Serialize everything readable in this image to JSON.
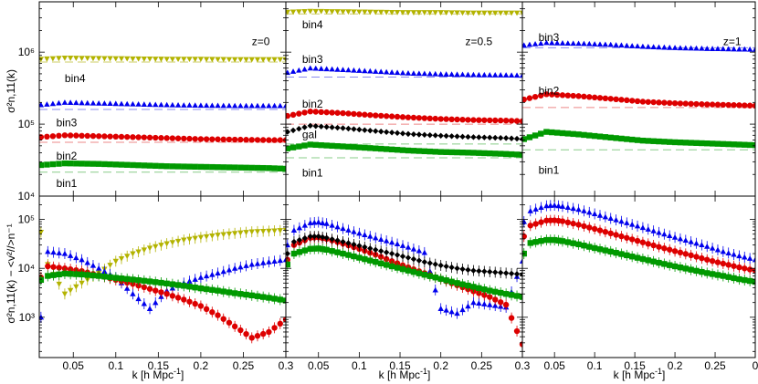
{
  "figure": {
    "xlabel": "k [h Mpc",
    "xlabel_sup": "-1",
    "xlabel_close": "]",
    "ylabel_top": "σ²n,11(k)",
    "ylabel_bottom": "σ²n,11(k) − <v²//>n⁻¹"
  },
  "colors": {
    "gal": "#000000",
    "bin1": "#009900",
    "bin2": "#dd0000",
    "bin3": "#0000ee",
    "bin4": "#b3b300",
    "dash_green": "#88cc88",
    "dash_red": "#ee8888",
    "dash_blue": "#8888ee",
    "dash_olive": "#cccc66"
  },
  "chart_data": [
    {
      "type": "scatter",
      "panel": "top-left",
      "label": "z=0",
      "yscale": "log",
      "ylim": [
        10000,
        5000000
      ],
      "xlim": [
        0.01,
        0.3
      ],
      "series": [
        {
          "name": "bin4",
          "marker": "tri_down",
          "color": "bin4",
          "x": [
            0.012,
            0.04,
            0.08,
            0.12,
            0.16,
            0.2,
            0.24,
            0.28,
            0.3
          ],
          "y": [
            800000,
            830000,
            820000,
            810000,
            800000,
            800000,
            790000,
            790000,
            790000
          ],
          "nominal": 730000
        },
        {
          "name": "bin3",
          "marker": "tri_up",
          "color": "bin3",
          "x": [
            0.012,
            0.04,
            0.08,
            0.12,
            0.16,
            0.2,
            0.24,
            0.28,
            0.3
          ],
          "y": [
            185000,
            200000,
            195000,
            190000,
            185000,
            182000,
            180000,
            180000,
            180000
          ],
          "nominal": 160000
        },
        {
          "name": "bin2",
          "marker": "circle",
          "color": "bin2",
          "x": [
            0.012,
            0.04,
            0.08,
            0.12,
            0.16,
            0.2,
            0.24,
            0.28,
            0.3
          ],
          "y": [
            66000,
            70000,
            68000,
            66000,
            64000,
            62000,
            61000,
            60000,
            60000
          ],
          "nominal": 56000
        },
        {
          "name": "bin1",
          "marker": "square",
          "color": "bin1",
          "x": [
            0.012,
            0.04,
            0.08,
            0.12,
            0.16,
            0.2,
            0.24,
            0.28,
            0.3
          ],
          "y": [
            27000,
            28500,
            28000,
            27000,
            26000,
            25500,
            25000,
            24500,
            24000
          ],
          "nominal": 21500
        }
      ]
    },
    {
      "type": "scatter",
      "panel": "top-middle",
      "label": "z=0.5",
      "yscale": "log",
      "ylim": [
        10000,
        5000000
      ],
      "xlim": [
        0.01,
        0.3
      ],
      "series": [
        {
          "name": "bin4",
          "marker": "tri_down",
          "color": "bin4",
          "x": [
            0.012,
            0.04,
            0.08,
            0.12,
            0.16,
            0.2,
            0.24,
            0.28,
            0.3
          ],
          "y": [
            3600000,
            3700000,
            3650000,
            3600000,
            3550000,
            3550000,
            3500000,
            3500000,
            3500000
          ],
          "nominal": 3400000
        },
        {
          "name": "bin3",
          "marker": "tri_up",
          "color": "bin3",
          "x": [
            0.012,
            0.04,
            0.08,
            0.12,
            0.16,
            0.2,
            0.24,
            0.28,
            0.3
          ],
          "y": [
            520000,
            600000,
            570000,
            540000,
            510000,
            495000,
            485000,
            480000,
            475000
          ],
          "nominal": 450000
        },
        {
          "name": "bin2",
          "marker": "circle",
          "color": "bin2",
          "x": [
            0.012,
            0.04,
            0.08,
            0.12,
            0.16,
            0.2,
            0.24,
            0.28,
            0.3
          ],
          "y": [
            130000,
            150000,
            142000,
            132000,
            124000,
            118000,
            114000,
            112000,
            110000
          ],
          "nominal": 100000
        },
        {
          "name": "gal",
          "marker": "diamond",
          "color": "gal",
          "x": [
            0.012,
            0.04,
            0.08,
            0.12,
            0.16,
            0.2,
            0.24,
            0.28,
            0.3
          ],
          "y": [
            78000,
            95000,
            88000,
            80000,
            73000,
            69000,
            66000,
            64000,
            62000
          ],
          "nominal": 53000
        },
        {
          "name": "bin1",
          "marker": "square",
          "color": "bin1",
          "x": [
            0.012,
            0.04,
            0.08,
            0.12,
            0.16,
            0.2,
            0.24,
            0.28,
            0.3
          ],
          "y": [
            46000,
            52000,
            49000,
            46000,
            43000,
            41000,
            40000,
            38500,
            37500
          ],
          "nominal": 34000
        }
      ]
    },
    {
      "type": "scatter",
      "panel": "top-right",
      "label": "z=1",
      "yscale": "log",
      "ylim": [
        10000,
        5000000
      ],
      "xlim": [
        0.01,
        0.3
      ],
      "series": [
        {
          "name": "bin3",
          "marker": "tri_up",
          "color": "bin3",
          "x": [
            0.012,
            0.04,
            0.08,
            0.12,
            0.16,
            0.2,
            0.24,
            0.28,
            0.3
          ],
          "y": [
            1250000,
            1350000,
            1320000,
            1270000,
            1200000,
            1150000,
            1120000,
            1100000,
            1090000
          ],
          "nominal": 1150000
        },
        {
          "name": "bin2",
          "marker": "circle",
          "color": "bin2",
          "x": [
            0.012,
            0.04,
            0.08,
            0.12,
            0.16,
            0.2,
            0.24,
            0.28,
            0.3
          ],
          "y": [
            220000,
            260000,
            245000,
            225000,
            205000,
            195000,
            188000,
            183000,
            180000
          ],
          "nominal": 170000
        },
        {
          "name": "bin1",
          "marker": "square",
          "color": "bin1",
          "x": [
            0.012,
            0.04,
            0.08,
            0.12,
            0.16,
            0.2,
            0.24,
            0.28,
            0.3
          ],
          "y": [
            62000,
            78000,
            72000,
            65000,
            59000,
            56000,
            54000,
            52000,
            51000
          ],
          "nominal": 44000
        }
      ]
    },
    {
      "type": "scatter",
      "panel": "bottom-left",
      "yscale": "log",
      "ylim": [
        150,
        300000
      ],
      "xlim": [
        0.01,
        0.3
      ],
      "series": [
        {
          "name": "bin4",
          "marker": "tri_down",
          "color": "bin4",
          "x": [
            0.012,
            0.02,
            0.04,
            0.06,
            0.08,
            0.1,
            0.12,
            0.14,
            0.16,
            0.18,
            0.2,
            0.22,
            0.24,
            0.26,
            0.28,
            0.3
          ],
          "y": [
            55000,
            12000,
            3000,
            5000,
            8000,
            14000,
            20000,
            26000,
            32000,
            38000,
            43000,
            48000,
            52000,
            56000,
            58000,
            60000
          ]
        },
        {
          "name": "bin3",
          "marker": "tri_up",
          "color": "bin3",
          "x": [
            0.012,
            0.02,
            0.04,
            0.06,
            0.08,
            0.1,
            0.12,
            0.14,
            0.16,
            0.18,
            0.2,
            0.22,
            0.24,
            0.26,
            0.28,
            0.3
          ],
          "y": [
            1000,
            22000,
            20000,
            15000,
            10000,
            6500,
            3000,
            1500,
            3500,
            5000,
            6500,
            8000,
            10000,
            12000,
            13500,
            15000
          ]
        },
        {
          "name": "bin2",
          "marker": "circle",
          "color": "bin2",
          "x": [
            0.012,
            0.02,
            0.04,
            0.06,
            0.08,
            0.1,
            0.12,
            0.14,
            0.16,
            0.18,
            0.2,
            0.22,
            0.24,
            0.26,
            0.28,
            0.3
          ],
          "y": [
            6500,
            11000,
            10000,
            8800,
            7200,
            5800,
            4800,
            3800,
            3000,
            2300,
            1700,
            1100,
            650,
            380,
            500,
            900
          ]
        },
        {
          "name": "bin1",
          "marker": "square",
          "color": "bin1",
          "x": [
            0.012,
            0.02,
            0.04,
            0.06,
            0.08,
            0.1,
            0.12,
            0.14,
            0.16,
            0.18,
            0.2,
            0.22,
            0.24,
            0.26,
            0.28,
            0.3
          ],
          "y": [
            5800,
            7000,
            7800,
            7500,
            7000,
            6400,
            5900,
            5400,
            4900,
            4400,
            3900,
            3500,
            3100,
            2800,
            2500,
            2200
          ]
        }
      ]
    },
    {
      "type": "scatter",
      "panel": "bottom-middle",
      "yscale": "log",
      "ylim": [
        150,
        300000
      ],
      "xlim": [
        0.01,
        0.3
      ],
      "series": [
        {
          "name": "bin3",
          "marker": "tri_up",
          "color": "bin3",
          "x": [
            0.012,
            0.02,
            0.04,
            0.05,
            0.06,
            0.08,
            0.1,
            0.12,
            0.14,
            0.16,
            0.18,
            0.2,
            0.22,
            0.24,
            0.26,
            0.28,
            0.3
          ],
          "y": [
            30000,
            60000,
            85000,
            88000,
            82000,
            65000,
            52000,
            42000,
            34000,
            27000,
            21000,
            1500,
            1200,
            2000,
            1800,
            1600,
            14000
          ]
        },
        {
          "name": "bin2",
          "marker": "circle",
          "color": "bin2",
          "x": [
            0.012,
            0.02,
            0.04,
            0.05,
            0.06,
            0.08,
            0.1,
            0.12,
            0.14,
            0.16,
            0.18,
            0.2,
            0.22,
            0.24,
            0.26,
            0.28,
            0.3
          ],
          "y": [
            15000,
            30000,
            42000,
            43000,
            40000,
            32000,
            25000,
            19000,
            14000,
            10500,
            8000,
            6000,
            4500,
            3400,
            2600,
            1800,
            280
          ]
        },
        {
          "name": "gal",
          "marker": "diamond",
          "color": "gal",
          "x": [
            0.012,
            0.02,
            0.04,
            0.05,
            0.06,
            0.08,
            0.1,
            0.12,
            0.14,
            0.16,
            0.18,
            0.2,
            0.22,
            0.24,
            0.26,
            0.28,
            0.3
          ],
          "y": [
            20000,
            35000,
            45000,
            45000,
            42000,
            35000,
            29000,
            24000,
            20000,
            16500,
            13500,
            11500,
            10000,
            9000,
            8500,
            8000,
            7500
          ]
        },
        {
          "name": "bin1",
          "marker": "square",
          "color": "bin1",
          "x": [
            0.012,
            0.02,
            0.04,
            0.05,
            0.06,
            0.08,
            0.1,
            0.12,
            0.14,
            0.16,
            0.18,
            0.2,
            0.22,
            0.24,
            0.26,
            0.28,
            0.3
          ],
          "y": [
            12000,
            20000,
            25000,
            25500,
            24000,
            20000,
            16500,
            13500,
            11000,
            9000,
            7400,
            6100,
            5000,
            4200,
            3500,
            3000,
            2600
          ]
        }
      ]
    },
    {
      "type": "scatter",
      "panel": "bottom-right",
      "yscale": "log",
      "ylim": [
        150,
        300000
      ],
      "xlim": [
        0.01,
        0.3
      ],
      "series": [
        {
          "name": "bin3",
          "marker": "tri_up",
          "color": "bin3",
          "x": [
            0.012,
            0.02,
            0.04,
            0.05,
            0.06,
            0.08,
            0.1,
            0.12,
            0.14,
            0.16,
            0.18,
            0.2,
            0.22,
            0.24,
            0.26,
            0.28,
            0.3
          ],
          "y": [
            90000,
            150000,
            190000,
            195000,
            185000,
            160000,
            130000,
            105000,
            85000,
            68000,
            54000,
            43000,
            35000,
            28000,
            22000,
            18000,
            15000
          ]
        },
        {
          "name": "bin2",
          "marker": "circle",
          "color": "bin2",
          "x": [
            0.012,
            0.02,
            0.04,
            0.05,
            0.06,
            0.08,
            0.1,
            0.12,
            0.14,
            0.16,
            0.18,
            0.2,
            0.22,
            0.24,
            0.26,
            0.28,
            0.3
          ],
          "y": [
            45000,
            75000,
            95000,
            96000,
            92000,
            78000,
            64000,
            52000,
            42000,
            34000,
            27500,
            22500,
            18500,
            15000,
            12500,
            10500,
            9000
          ]
        },
        {
          "name": "bin1",
          "marker": "square",
          "color": "bin1",
          "x": [
            0.012,
            0.02,
            0.04,
            0.05,
            0.06,
            0.08,
            0.1,
            0.12,
            0.14,
            0.16,
            0.18,
            0.2,
            0.22,
            0.24,
            0.26,
            0.28,
            0.3
          ],
          "y": [
            20000,
            33000,
            38000,
            38000,
            36000,
            31000,
            26000,
            22000,
            18500,
            15500,
            13000,
            11000,
            9400,
            8000,
            7000,
            6000,
            5300
          ]
        }
      ]
    }
  ],
  "labels": {
    "top-left": [
      {
        "text": "z=0",
        "x": 0.26,
        "y": 1400000
      },
      {
        "text": "bin4",
        "x": 0.04,
        "y": 430000
      },
      {
        "text": "bin3",
        "x": 0.03,
        "y": 105000
      },
      {
        "text": "bin2",
        "x": 0.03,
        "y": 36000
      },
      {
        "text": "bin1",
        "x": 0.03,
        "y": 15000
      }
    ],
    "top-middle": [
      {
        "text": "z=0.5",
        "x": 0.23,
        "y": 1400000
      },
      {
        "text": "bin4",
        "x": 0.03,
        "y": 2400000
      },
      {
        "text": "bin3",
        "x": 0.03,
        "y": 800000
      },
      {
        "text": "bin2",
        "x": 0.03,
        "y": 190000
      },
      {
        "text": "gal",
        "x": 0.03,
        "y": 72000
      },
      {
        "text": "bin1",
        "x": 0.03,
        "y": 21000
      }
    ],
    "top-right": [
      {
        "text": "bin3",
        "x": 0.03,
        "y": 1600000
      },
      {
        "text": "z=1",
        "x": 0.26,
        "y": 1400000
      },
      {
        "text": "bin2",
        "x": 0.03,
        "y": 290000
      },
      {
        "text": "bin1",
        "x": 0.03,
        "y": 23000
      }
    ]
  },
  "ticks": {
    "x": [
      "0.05",
      "0.1",
      "0.15",
      "0.2",
      "0.25",
      "0.3",
      "0.05",
      "0.1",
      "0.15",
      "0.2",
      "0.25",
      "0.3",
      "0.05",
      "0.1",
      "0.15",
      "0.2",
      "0.25",
      "0"
    ],
    "y_top": [
      "10⁴",
      "10⁵",
      "10⁶"
    ],
    "y_bottom": [
      "10³",
      "10⁴",
      "10⁵"
    ]
  }
}
